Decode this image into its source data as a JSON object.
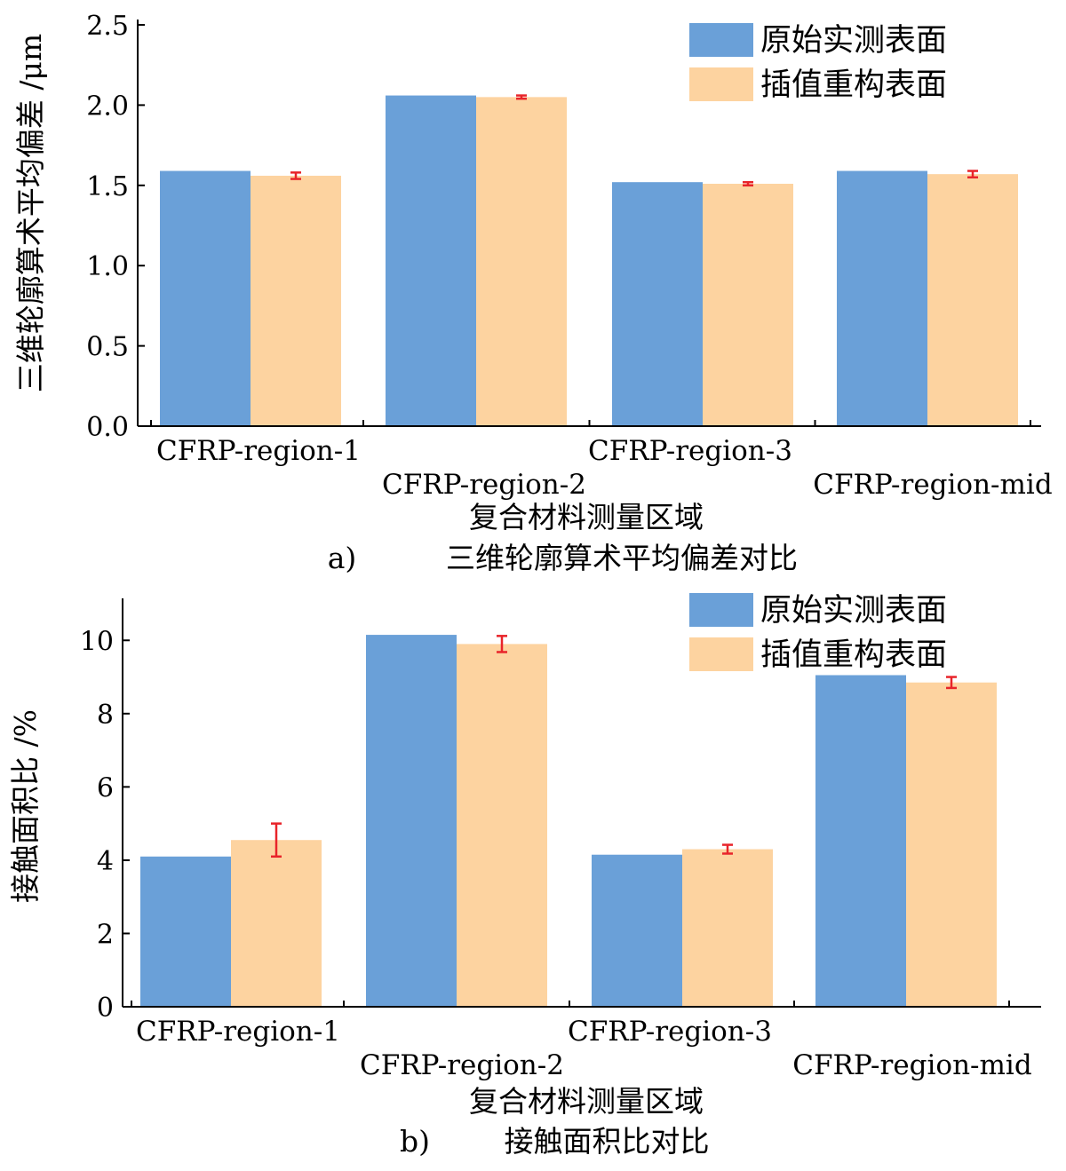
{
  "colors": {
    "original": "#6aa0d8",
    "reconstructed": "#fdd3a0",
    "error_bar": "#e8242a",
    "axis": "#000000"
  },
  "chart_data": [
    {
      "type": "bar",
      "title": "",
      "caption_label": "a)",
      "caption_text": "三维轮廓算术平均偏差对比",
      "xlabel": "复合材料测量区域",
      "ylabel": "三维轮廓算术平均偏差 /μm",
      "ylim": [
        0,
        2.5
      ],
      "yticks": [
        0.0,
        0.5,
        1.0,
        1.5,
        2.0,
        2.5
      ],
      "ytick_labels": [
        "0.0",
        "0.5",
        "1.0",
        "1.5",
        "2.0",
        "2.5"
      ],
      "categories": [
        "CFRP-region-1",
        "CFRP-region-2",
        "CFRP-region-3",
        "CFRP-region-mid"
      ],
      "legend": {
        "position": "top-right"
      },
      "series": [
        {
          "name": "原始实测表面",
          "values": [
            1.59,
            2.06,
            1.52,
            1.59
          ]
        },
        {
          "name": "插值重构表面",
          "values": [
            1.56,
            2.05,
            1.51,
            1.57
          ],
          "errors": [
            0.02,
            0.01,
            0.01,
            0.02
          ]
        }
      ]
    },
    {
      "type": "bar",
      "title": "",
      "caption_label": "b)",
      "caption_text": "接触面积比对比",
      "xlabel": "复合材料测量区域",
      "ylabel": "接触面积比 /%",
      "ylim": [
        0,
        11
      ],
      "yticks": [
        0,
        2,
        4,
        6,
        8,
        10
      ],
      "ytick_labels": [
        "0",
        "2",
        "4",
        "6",
        "8",
        "10"
      ],
      "categories": [
        "CFRP-region-1",
        "CFRP-region-2",
        "CFRP-region-3",
        "CFRP-region-mid"
      ],
      "legend": {
        "position": "top-right"
      },
      "series": [
        {
          "name": "原始实测表面",
          "values": [
            4.1,
            10.15,
            4.15,
            9.05
          ]
        },
        {
          "name": "插值重构表面",
          "values": [
            4.55,
            9.9,
            4.3,
            8.85
          ],
          "errors": [
            0.45,
            0.22,
            0.12,
            0.15
          ]
        }
      ]
    }
  ]
}
